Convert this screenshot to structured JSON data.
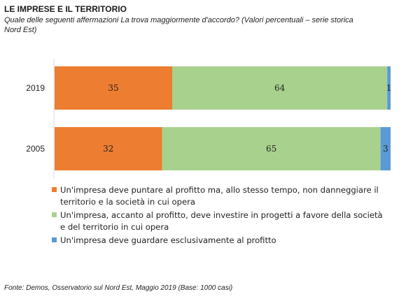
{
  "chart_data": {
    "type": "bar",
    "orientation": "horizontal",
    "stacked": true,
    "title": "LE IMPRESE E IL TERRITORIO",
    "subtitle": "Quale delle seguenti affermazioni La trova maggiormente d'accordo? (Valori percentuali – serie storica Nord Est)",
    "categories": [
      "2019",
      "2005"
    ],
    "series": [
      {
        "name": "Un'impresa deve puntare al profitto ma, allo stesso tempo, non danneggiare il territorio e la società in cui opera",
        "color": "#ed7d31",
        "values": [
          35,
          32
        ]
      },
      {
        "name": "Un'impresa, accanto al profitto, deve investire in progetti a favore della società e del territorio in cui opera",
        "color": "#a9d18e",
        "values": [
          64,
          65
        ]
      },
      {
        "name": "Un'impresa deve guardare esclusivamente al profitto",
        "color": "#5b9bd5",
        "values": [
          1,
          3
        ]
      }
    ],
    "xlim": [
      0,
      100
    ],
    "grid": false,
    "legend_position": "bottom",
    "source": "Fonte: Demos, Osservatorio sul Nord Est, Maggio 2019 (Base: 1000 casi)"
  }
}
